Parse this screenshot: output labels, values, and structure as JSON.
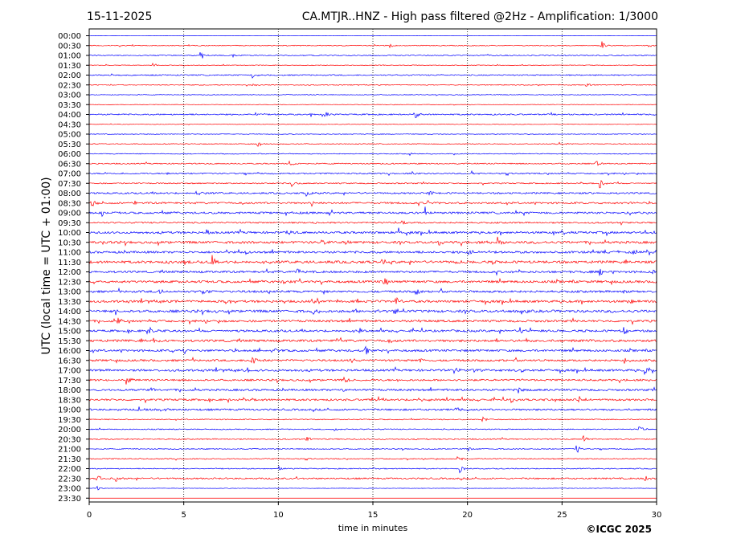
{
  "header": {
    "date": "15-11-2025",
    "title": "CA.MTJR..HNZ - High pass filtered @2Hz - Amplification: 1/3000"
  },
  "footer": {
    "copyright": "©ICGC 2025"
  },
  "chart_data": {
    "type": "line",
    "title": "CA.MTJR..HNZ - High pass filtered @2Hz - Amplification: 1/3000",
    "xlabel": "time in minutes",
    "ylabel": "UTC (local time = UTC + 01:00)",
    "xlim": [
      0,
      30
    ],
    "xticks": [
      0,
      5,
      10,
      15,
      20,
      25,
      30
    ],
    "grid": "vertical dotted",
    "trace_colors": [
      "#0000ff",
      "#ff0000"
    ],
    "rows": [
      "00:00",
      "00:30",
      "01:00",
      "01:30",
      "02:00",
      "02:30",
      "03:00",
      "03:30",
      "04:00",
      "04:30",
      "05:00",
      "05:30",
      "06:00",
      "06:30",
      "07:00",
      "07:30",
      "08:00",
      "08:30",
      "09:00",
      "09:30",
      "10:00",
      "10:30",
      "11:00",
      "11:30",
      "12:00",
      "12:30",
      "13:00",
      "13:30",
      "14:00",
      "14:30",
      "15:00",
      "15:30",
      "16:00",
      "16:30",
      "17:00",
      "17:30",
      "18:00",
      "18:30",
      "19:00",
      "19:30",
      "20:00",
      "20:30",
      "21:00",
      "21:30",
      "22:00",
      "22:30",
      "23:00",
      "23:30"
    ],
    "noise_level": [
      0.2,
      0.5,
      0.6,
      0.4,
      0.7,
      0.5,
      0.4,
      0.3,
      0.8,
      0.3,
      0.4,
      0.5,
      0.5,
      0.7,
      0.8,
      0.7,
      1.0,
      1.1,
      1.2,
      0.9,
      1.3,
      1.4,
      1.3,
      1.5,
      1.3,
      1.4,
      1.3,
      1.4,
      1.5,
      1.3,
      1.3,
      1.4,
      1.3,
      1.2,
      1.3,
      1.1,
      1.2,
      1.2,
      1.1,
      0.6,
      0.6,
      0.7,
      0.6,
      0.6,
      0.6,
      0.9,
      0.3,
      0.0
    ],
    "events": [
      {
        "row": "00:30",
        "t": 27.1,
        "amp": 6
      },
      {
        "row": "00:30",
        "t": 15.9,
        "amp": 3
      },
      {
        "row": "01:00",
        "t": 5.9,
        "amp": 6
      },
      {
        "row": "01:00",
        "t": 7.6,
        "amp": 2
      },
      {
        "row": "01:30",
        "t": 3.4,
        "amp": 3
      },
      {
        "row": "02:00",
        "t": 8.6,
        "amp": 4
      },
      {
        "row": "02:30",
        "t": 26.3,
        "amp": 3
      },
      {
        "row": "02:30",
        "t": 8.6,
        "amp": 2
      },
      {
        "row": "04:00",
        "t": 17.3,
        "amp": 5
      },
      {
        "row": "04:00",
        "t": 11.7,
        "amp": 4
      },
      {
        "row": "04:00",
        "t": 12.5,
        "amp": 4
      },
      {
        "row": "04:00",
        "t": 8.8,
        "amp": 3
      },
      {
        "row": "05:30",
        "t": 8.9,
        "amp": 5
      },
      {
        "row": "05:30",
        "t": 24.9,
        "amp": 3
      },
      {
        "row": "06:00",
        "t": 16.9,
        "amp": 3
      },
      {
        "row": "06:30",
        "t": 10.6,
        "amp": 4
      },
      {
        "row": "06:30",
        "t": 26.8,
        "amp": 4
      },
      {
        "row": "07:00",
        "t": 17.1,
        "amp": 3
      },
      {
        "row": "07:00",
        "t": 20.2,
        "amp": 3
      },
      {
        "row": "07:00",
        "t": 4.2,
        "amp": 2
      },
      {
        "row": "07:30",
        "t": 10.7,
        "amp": 6
      },
      {
        "row": "07:30",
        "t": 27.0,
        "amp": 6
      },
      {
        "row": "08:00",
        "t": 5.7,
        "amp": 4
      },
      {
        "row": "08:00",
        "t": 11.5,
        "amp": 5
      },
      {
        "row": "08:00",
        "t": 17.9,
        "amp": 5
      },
      {
        "row": "08:30",
        "t": 11.8,
        "amp": 5
      },
      {
        "row": "08:30",
        "t": 17.9,
        "amp": 5
      },
      {
        "row": "08:30",
        "t": 2.4,
        "amp": 4
      },
      {
        "row": "08:30",
        "t": 0.1,
        "amp": 5
      },
      {
        "row": "08:30",
        "t": 28.5,
        "amp": 3
      },
      {
        "row": "09:00",
        "t": 17.8,
        "amp": 7
      },
      {
        "row": "09:00",
        "t": 0.7,
        "amp": 4
      },
      {
        "row": "09:00",
        "t": 29.3,
        "amp": 4
      },
      {
        "row": "09:30",
        "t": 16.5,
        "amp": 5
      },
      {
        "row": "09:30",
        "t": 11.9,
        "amp": 3
      },
      {
        "row": "09:30",
        "t": 28.1,
        "amp": 3
      },
      {
        "row": "10:00",
        "t": 6.2,
        "amp": 5
      },
      {
        "row": "10:00",
        "t": 16.4,
        "amp": 5
      },
      {
        "row": "10:00",
        "t": 29.8,
        "amp": 4
      },
      {
        "row": "10:00",
        "t": 10.5,
        "amp": 3
      },
      {
        "row": "10:30",
        "t": 21.6,
        "amp": 7
      },
      {
        "row": "10:30",
        "t": 0.7,
        "amp": 4
      },
      {
        "row": "10:30",
        "t": 13.6,
        "amp": 4
      },
      {
        "row": "10:30",
        "t": 18.5,
        "amp": 4
      },
      {
        "row": "10:30",
        "t": 12.3,
        "amp": 3
      },
      {
        "row": "11:00",
        "t": 20.1,
        "amp": 4
      },
      {
        "row": "11:00",
        "t": 8.3,
        "amp": 3
      },
      {
        "row": "11:00",
        "t": 28.8,
        "amp": 3
      },
      {
        "row": "11:30",
        "t": 5.0,
        "amp": 4
      },
      {
        "row": "11:30",
        "t": 6.5,
        "amp": 5
      },
      {
        "row": "11:30",
        "t": 15.5,
        "amp": 4
      },
      {
        "row": "11:30",
        "t": 19.3,
        "amp": 4
      },
      {
        "row": "12:00",
        "t": 11.0,
        "amp": 5
      },
      {
        "row": "12:00",
        "t": 27.0,
        "amp": 4
      },
      {
        "row": "12:00",
        "t": 29.8,
        "amp": 4
      },
      {
        "row": "12:30",
        "t": 15.6,
        "amp": 5
      },
      {
        "row": "12:30",
        "t": 30.0,
        "amp": 6
      },
      {
        "row": "12:30",
        "t": 10.3,
        "amp": 3
      },
      {
        "row": "13:00",
        "t": 3.7,
        "amp": 5
      },
      {
        "row": "13:00",
        "t": 6.0,
        "amp": 4
      },
      {
        "row": "13:00",
        "t": 17.3,
        "amp": 4
      },
      {
        "row": "13:00",
        "t": 28.3,
        "amp": 3
      },
      {
        "row": "13:30",
        "t": 7.2,
        "amp": 5
      },
      {
        "row": "13:30",
        "t": 16.2,
        "amp": 5
      },
      {
        "row": "13:30",
        "t": 28.5,
        "amp": 4
      },
      {
        "row": "13:30",
        "t": 11.8,
        "amp": 3
      },
      {
        "row": "14:00",
        "t": 1.4,
        "amp": 4
      },
      {
        "row": "14:00",
        "t": 11.8,
        "amp": 5
      },
      {
        "row": "14:00",
        "t": 15.2,
        "amp": 4
      },
      {
        "row": "14:00",
        "t": 16.2,
        "amp": 5
      },
      {
        "row": "14:00",
        "t": 6.5,
        "amp": 3
      },
      {
        "row": "14:30",
        "t": 1.5,
        "amp": 5
      },
      {
        "row": "14:30",
        "t": 17.4,
        "amp": 4
      },
      {
        "row": "15:00",
        "t": 3.2,
        "amp": 5
      },
      {
        "row": "15:00",
        "t": 22.8,
        "amp": 5
      },
      {
        "row": "15:00",
        "t": 28.3,
        "amp": 4
      },
      {
        "row": "15:00",
        "t": 14.3,
        "amp": 3
      },
      {
        "row": "15:30",
        "t": 3.4,
        "amp": 4
      },
      {
        "row": "15:30",
        "t": 13.0,
        "amp": 5
      },
      {
        "row": "15:30",
        "t": 26.3,
        "amp": 4
      },
      {
        "row": "16:00",
        "t": 5.0,
        "amp": 5
      },
      {
        "row": "16:00",
        "t": 9.8,
        "amp": 4
      },
      {
        "row": "16:00",
        "t": 14.6,
        "amp": 5
      },
      {
        "row": "16:30",
        "t": 8.6,
        "amp": 5
      },
      {
        "row": "16:30",
        "t": 13.8,
        "amp": 4
      },
      {
        "row": "16:30",
        "t": 17.5,
        "amp": 4
      },
      {
        "row": "16:30",
        "t": 28.3,
        "amp": 4
      },
      {
        "row": "17:00",
        "t": 8.3,
        "amp": 5
      },
      {
        "row": "17:00",
        "t": 29.4,
        "amp": 6
      },
      {
        "row": "17:00",
        "t": 22.8,
        "amp": 4
      },
      {
        "row": "17:00",
        "t": 19.3,
        "amp": 3
      },
      {
        "row": "17:30",
        "t": 2.0,
        "amp": 5
      },
      {
        "row": "17:30",
        "t": 13.5,
        "amp": 5
      },
      {
        "row": "17:30",
        "t": 22.8,
        "amp": 3
      },
      {
        "row": "18:00",
        "t": 3.3,
        "amp": 4
      },
      {
        "row": "18:00",
        "t": 22.7,
        "amp": 5
      },
      {
        "row": "18:00",
        "t": 13.4,
        "amp": 3
      },
      {
        "row": "18:30",
        "t": 14.8,
        "amp": 4
      },
      {
        "row": "18:30",
        "t": 25.9,
        "amp": 5
      },
      {
        "row": "18:30",
        "t": 22.3,
        "amp": 4
      },
      {
        "row": "18:30",
        "t": 17.4,
        "amp": 3
      },
      {
        "row": "19:00",
        "t": 2.6,
        "amp": 5
      },
      {
        "row": "19:00",
        "t": 19.4,
        "amp": 4
      },
      {
        "row": "19:00",
        "t": 3.8,
        "amp": 3
      },
      {
        "row": "19:30",
        "t": 20.8,
        "amp": 4
      },
      {
        "row": "20:00",
        "t": 29.1,
        "amp": 4
      },
      {
        "row": "20:00",
        "t": 13.0,
        "amp": 3
      },
      {
        "row": "20:30",
        "t": 11.5,
        "amp": 4
      },
      {
        "row": "20:30",
        "t": 26.1,
        "amp": 5
      },
      {
        "row": "21:00",
        "t": 25.8,
        "amp": 5
      },
      {
        "row": "21:00",
        "t": 20.1,
        "amp": 3
      },
      {
        "row": "21:30",
        "t": 19.5,
        "amp": 5
      },
      {
        "row": "22:00",
        "t": 19.6,
        "amp": 5
      },
      {
        "row": "22:00",
        "t": 10.0,
        "amp": 4
      },
      {
        "row": "22:30",
        "t": 0.4,
        "amp": 5
      },
      {
        "row": "22:30",
        "t": 1.4,
        "amp": 5
      },
      {
        "row": "22:30",
        "t": 29.4,
        "amp": 5
      },
      {
        "row": "23:00",
        "t": 0.4,
        "amp": 4
      }
    ]
  }
}
